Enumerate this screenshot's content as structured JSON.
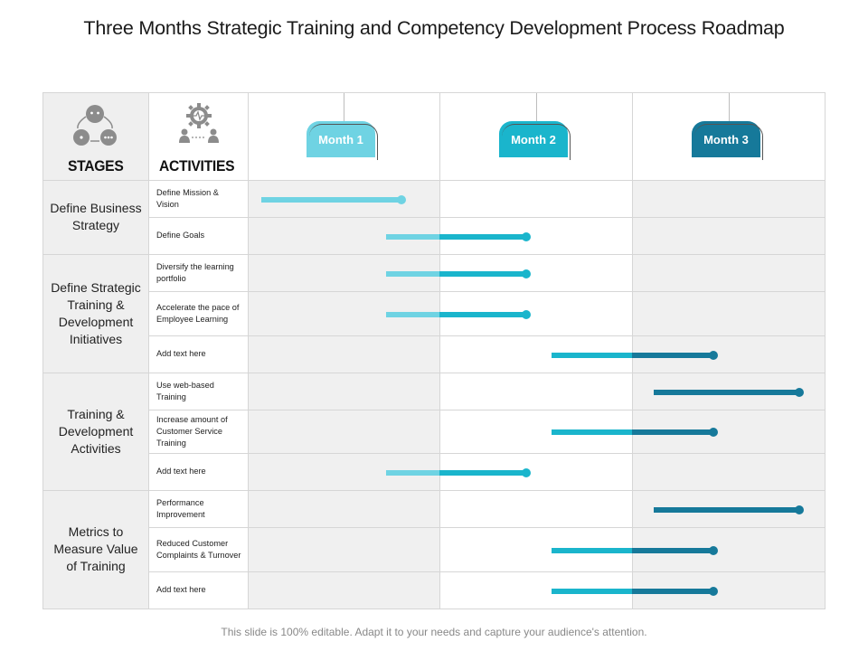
{
  "title": "Three Months Strategic Training and Competency Development Process Roadmap",
  "footer": "This slide is 100% editable. Adapt it to your needs and capture your audience's attention.",
  "headers": {
    "stages": "STAGES",
    "activities": "ACTIVITIES"
  },
  "icons": {
    "stages": "people-network-icon",
    "activities": "gear-with-people-icon"
  },
  "colors": {
    "light": "#6fd3e3",
    "mid": "#1ab5cc",
    "dark": "#16799a",
    "gray_bg": "#efefef",
    "grid": "#d6d6d6"
  },
  "months": [
    {
      "label": "Month 1",
      "color": "#6fd3e3"
    },
    {
      "label": "Month 2",
      "color": "#1ab5cc"
    },
    {
      "label": "Month 3",
      "color": "#16799a"
    }
  ],
  "stages": [
    {
      "label": "Define Business Strategy"
    },
    {
      "label": "Define Strategic Training & Development Initiatives"
    },
    {
      "label": "Training & Development Activities"
    },
    {
      "label": "Metrics to Measure Value of Training"
    }
  ],
  "activities": [
    {
      "label": "Define Mission & Vision",
      "start_month": 0.07,
      "end_month": 0.8
    },
    {
      "label": "Define Goals",
      "start_month": 0.72,
      "end_month": 1.45
    },
    {
      "label": "Diversify the learning portfolio",
      "start_month": 0.72,
      "end_month": 1.45
    },
    {
      "label": "Accelerate the pace of Employee Learning",
      "start_month": 0.72,
      "end_month": 1.45
    },
    {
      "label": "Add text here",
      "start_month": 1.58,
      "end_month": 2.42
    },
    {
      "label": "Use web-based Training",
      "start_month": 2.11,
      "end_month": 2.87
    },
    {
      "label": "Increase amount of Customer Service Training",
      "start_month": 1.58,
      "end_month": 2.42
    },
    {
      "label": "Add text here",
      "start_month": 0.72,
      "end_month": 1.45
    },
    {
      "label": "Performance Improvement",
      "start_month": 2.11,
      "end_month": 2.87
    },
    {
      "label": "Reduced Customer Complaints & Turnover",
      "start_month": 1.58,
      "end_month": 2.42
    },
    {
      "label": "Add text here",
      "start_month": 1.58,
      "end_month": 2.42
    }
  ]
}
